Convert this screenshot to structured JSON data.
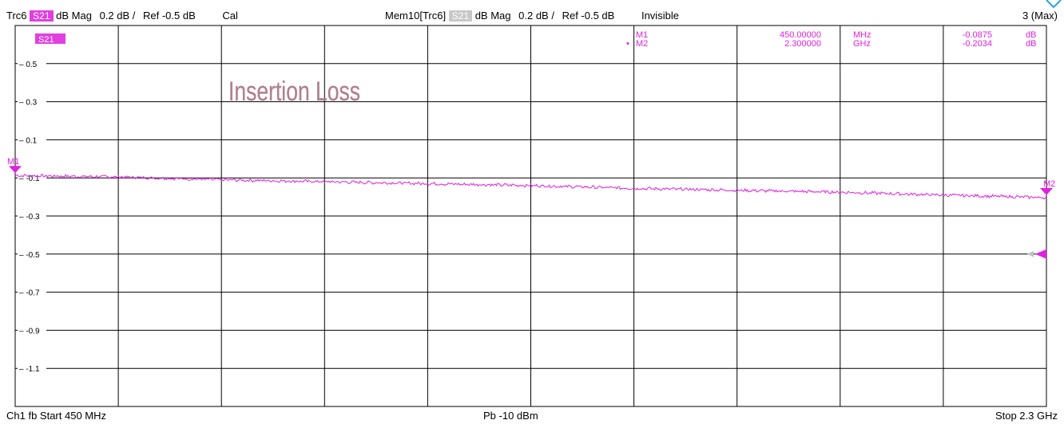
{
  "header": {
    "trace": "Trc6",
    "param": "S21",
    "format": "dB Mag",
    "scale": "0.2 dB /",
    "ref": "Ref -0.5 dB",
    "cal": "Cal",
    "mem_trace": "Mem10[Trc6]",
    "mem_param": "S21",
    "mem_format": "dB Mag",
    "mem_scale": "0.2 dB /",
    "mem_ref": "Ref -0.5 dB",
    "mem_state": "Invisible",
    "max_label": "3 (Max)"
  },
  "footer": {
    "left": "Ch1  fb  Start  450 MHz",
    "center": "Pb   -10 dBm",
    "right": "Stop  2.3 GHz"
  },
  "colors": {
    "trace": "#e020e0",
    "grid": "#000000",
    "ticktext": "#000000",
    "badge": "#e040e0",
    "annotation": "#b08090",
    "refmarker_gray": "#c0c0c0"
  },
  "logo_icon": "rohde-schwarz-diamond-icon",
  "chart_data": {
    "type": "line",
    "title": "Insertion Loss",
    "trace_label": "S21",
    "xlabel": "",
    "ylabel": "",
    "xlim_mhz": [
      450,
      2300
    ],
    "ylim": [
      -1.3,
      0.7
    ],
    "yticks": [
      0.5,
      0.3,
      0.1,
      -0.1,
      -0.3,
      -0.5,
      -0.7,
      -0.9,
      -1.1
    ],
    "ytick_labels": [
      "0.5",
      "0.3",
      "0.1",
      "-0.1",
      "-0.3",
      "-0.5",
      "-0.7",
      "-0.9",
      "-1.1"
    ],
    "x_divisions": 10,
    "grid": true,
    "reference_level_db": -0.5,
    "series": [
      {
        "x_mhz": [
          450,
          635,
          820,
          1005,
          1190,
          1375,
          1560,
          1745,
          1930,
          2115,
          2300
        ],
        "values": [
          -0.0875,
          -0.095,
          -0.11,
          -0.12,
          -0.13,
          -0.14,
          -0.155,
          -0.165,
          -0.175,
          -0.19,
          -0.2034
        ]
      }
    ],
    "markers": [
      {
        "name": "M1",
        "stimulus": "450.00000",
        "unit": "MHz",
        "value": "-0.0875",
        "value_unit": "dB",
        "x_mhz": 450,
        "y": -0.0875,
        "active": false
      },
      {
        "name": "M2",
        "stimulus": "2.300000",
        "unit": "GHz",
        "value": "-0.2034",
        "value_unit": "dB",
        "x_mhz": 2300,
        "y": -0.2034,
        "active": true
      }
    ]
  }
}
